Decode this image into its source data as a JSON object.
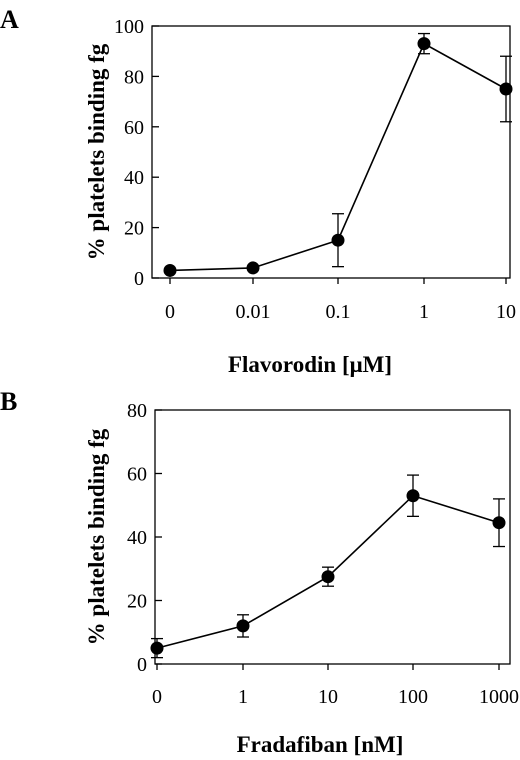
{
  "chart_data": [
    {
      "type": "line",
      "panel_label": "A",
      "title": "",
      "xlabel": "Flavorodin [μM]",
      "ylabel": "% platelets binding fg",
      "x_tick_labels": [
        "0",
        "0.01",
        "0.1",
        "1",
        "10"
      ],
      "y_ticks": [
        0,
        20,
        40,
        60,
        80,
        100
      ],
      "ylim": [
        0,
        100
      ],
      "grid": false,
      "legend": "none",
      "series": [
        {
          "x": [
            "0",
            "0.01",
            "0.1",
            "1",
            "10"
          ],
          "y": [
            3,
            4,
            15,
            93,
            75
          ],
          "error": [
            0,
            0,
            10.5,
            4,
            13
          ]
        }
      ]
    },
    {
      "type": "line",
      "panel_label": "B",
      "title": "",
      "xlabel": "Fradafiban [nM]",
      "ylabel": "% platelets binding fg",
      "x_tick_labels": [
        "0",
        "1",
        "10",
        "100",
        "1000"
      ],
      "y_ticks": [
        0,
        20,
        40,
        60,
        80
      ],
      "ylim": [
        0,
        80
      ],
      "grid": false,
      "legend": "none",
      "series": [
        {
          "x": [
            "0",
            "1",
            "10",
            "100",
            "1000"
          ],
          "y": [
            5,
            12,
            27.5,
            53,
            44.5
          ],
          "error": [
            3,
            3.5,
            3,
            6.5,
            7.5
          ]
        }
      ]
    }
  ]
}
